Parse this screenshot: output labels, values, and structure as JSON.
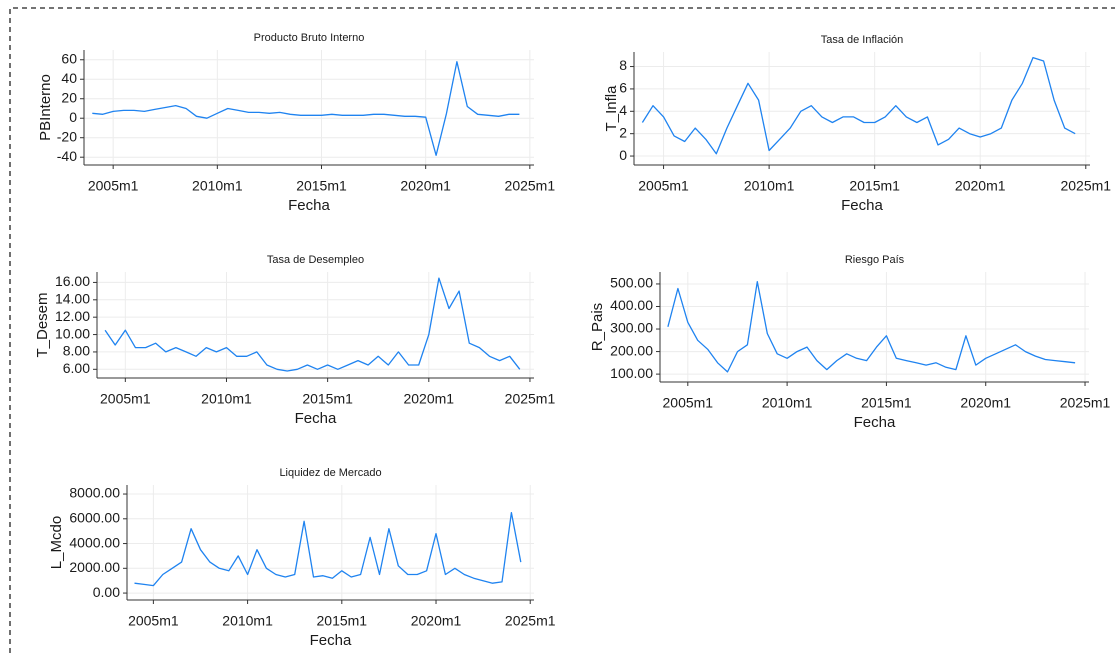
{
  "chart_data": [
    {
      "type": "line",
      "title": "Producto Bruto Interno",
      "x_label": "Fecha",
      "y_label": "PBInterno",
      "grid": true,
      "xlim": [
        2003.6,
        2025.2
      ],
      "xticks": [
        {
          "value": 2005,
          "label": "2005m1"
        },
        {
          "value": 2010,
          "label": "2010m1"
        },
        {
          "value": 2015,
          "label": "2015m1"
        },
        {
          "value": 2020,
          "label": "2020m1"
        },
        {
          "value": 2025,
          "label": "2025m1"
        }
      ],
      "ylim": [
        -48,
        70
      ],
      "yticks": [
        -40,
        -20,
        0,
        20,
        40,
        60
      ],
      "x": [
        2004,
        2004.5,
        2005,
        2005.5,
        2006,
        2006.5,
        2007,
        2007.5,
        2008,
        2008.5,
        2009,
        2009.5,
        2010,
        2010.5,
        2011,
        2011.5,
        2012,
        2012.5,
        2013,
        2013.5,
        2014,
        2014.5,
        2015,
        2015.5,
        2016,
        2016.5,
        2017,
        2017.5,
        2018,
        2018.5,
        2019,
        2019.5,
        2020,
        2020.5,
        2021,
        2021.5,
        2022,
        2022.5,
        2023,
        2023.5,
        2024,
        2024.5
      ],
      "series": [
        {
          "name": "PBInterno",
          "color": "#1f83f0",
          "values": [
            5,
            4,
            7,
            8,
            8,
            7,
            9,
            11,
            13,
            10,
            2,
            0,
            5,
            10,
            8,
            6,
            6,
            5,
            6,
            4,
            3,
            3,
            3,
            4,
            3,
            3,
            3,
            4,
            4,
            3,
            2,
            2,
            1,
            -38,
            5,
            58,
            12,
            4,
            3,
            2,
            4,
            4
          ]
        }
      ]
    },
    {
      "type": "line",
      "title": "Tasa de Inflación",
      "x_label": "Fecha",
      "y_label": "T_Infla",
      "grid": true,
      "xlim": [
        2003.6,
        2025.2
      ],
      "xticks": [
        {
          "value": 2005,
          "label": "2005m1"
        },
        {
          "value": 2010,
          "label": "2010m1"
        },
        {
          "value": 2015,
          "label": "2015m1"
        },
        {
          "value": 2020,
          "label": "2020m1"
        },
        {
          "value": 2025,
          "label": "2025m1"
        }
      ],
      "ylim": [
        -0.8,
        9.3
      ],
      "yticks": [
        0,
        2,
        4,
        6,
        8
      ],
      "x": [
        2004,
        2004.5,
        2005,
        2005.5,
        2006,
        2006.5,
        2007,
        2007.5,
        2008,
        2008.5,
        2009,
        2009.5,
        2010,
        2010.5,
        2011,
        2011.5,
        2012,
        2012.5,
        2013,
        2013.5,
        2014,
        2014.5,
        2015,
        2015.5,
        2016,
        2016.5,
        2017,
        2017.5,
        2018,
        2018.5,
        2019,
        2019.5,
        2020,
        2020.5,
        2021,
        2021.5,
        2022,
        2022.5,
        2023,
        2023.5,
        2024,
        2024.5
      ],
      "series": [
        {
          "name": "T_Infla",
          "color": "#1f83f0",
          "values": [
            3,
            4.5,
            3.5,
            1.8,
            1.3,
            2.5,
            1.5,
            0.2,
            2.5,
            4.5,
            6.5,
            5,
            0.5,
            1.5,
            2.5,
            4,
            4.5,
            3.5,
            3,
            3.5,
            3.5,
            3,
            3,
            3.5,
            4.5,
            3.5,
            3,
            3.5,
            1,
            1.5,
            2.5,
            2,
            1.7,
            2,
            2.5,
            5,
            6.5,
            8.8,
            8.5,
            5,
            2.5,
            2
          ]
        }
      ]
    },
    {
      "type": "line",
      "title": "Tasa de Desempleo",
      "x_label": "Fecha",
      "y_label": "T_Desem",
      "grid": true,
      "xlim": [
        2003.6,
        2025.2
      ],
      "xticks": [
        {
          "value": 2005,
          "label": "2005m1"
        },
        {
          "value": 2010,
          "label": "2010m1"
        },
        {
          "value": 2015,
          "label": "2015m1"
        },
        {
          "value": 2020,
          "label": "2020m1"
        },
        {
          "value": 2025,
          "label": "2025m1"
        }
      ],
      "ylim": [
        5,
        17.2
      ],
      "yticks": [
        {
          "value": 6,
          "label": "6.00"
        },
        {
          "value": 8,
          "label": "8.00"
        },
        {
          "value": 10,
          "label": "10.00"
        },
        {
          "value": 12,
          "label": "12.00"
        },
        {
          "value": 14,
          "label": "14.00"
        },
        {
          "value": 16,
          "label": "16.00"
        }
      ],
      "x": [
        2004,
        2004.5,
        2005,
        2005.5,
        2006,
        2006.5,
        2007,
        2007.5,
        2008,
        2008.5,
        2009,
        2009.5,
        2010,
        2010.5,
        2011,
        2011.5,
        2012,
        2012.5,
        2013,
        2013.5,
        2014,
        2014.5,
        2015,
        2015.5,
        2016,
        2016.5,
        2017,
        2017.5,
        2018,
        2018.5,
        2019,
        2019.5,
        2020,
        2020.5,
        2021,
        2021.5,
        2022,
        2022.5,
        2023,
        2023.5,
        2024,
        2024.5
      ],
      "series": [
        {
          "name": "T_Desem",
          "color": "#1f83f0",
          "values": [
            10.5,
            8.8,
            10.5,
            8.5,
            8.5,
            9,
            8,
            8.5,
            8,
            7.5,
            8.5,
            8,
            8.5,
            7.5,
            7.5,
            8,
            6.5,
            6,
            5.8,
            6,
            6.5,
            6,
            6.5,
            6,
            6.5,
            7,
            6.5,
            7.5,
            6.5,
            8,
            6.5,
            6.5,
            10,
            16.5,
            13,
            15,
            9,
            8.5,
            7.5,
            7,
            7.5,
            6
          ]
        }
      ]
    },
    {
      "type": "line",
      "title": "Riesgo País",
      "x_label": "Fecha",
      "y_label": "R_Pais",
      "grid": true,
      "xlim": [
        2003.6,
        2025.2
      ],
      "xticks": [
        {
          "value": 2005,
          "label": "2005m1"
        },
        {
          "value": 2010,
          "label": "2010m1"
        },
        {
          "value": 2015,
          "label": "2015m1"
        },
        {
          "value": 2020,
          "label": "2020m1"
        },
        {
          "value": 2025,
          "label": "2025m1"
        }
      ],
      "ylim": [
        65,
        553
      ],
      "yticks": [
        {
          "value": 100,
          "label": "100.00"
        },
        {
          "value": 200,
          "label": "200.00"
        },
        {
          "value": 300,
          "label": "300.00"
        },
        {
          "value": 400,
          "label": "400.00"
        },
        {
          "value": 500,
          "label": "500.00"
        }
      ],
      "x": [
        2004,
        2004.5,
        2005,
        2005.5,
        2006,
        2006.5,
        2007,
        2007.5,
        2008,
        2008.5,
        2009,
        2009.5,
        2010,
        2010.5,
        2011,
        2011.5,
        2012,
        2012.5,
        2013,
        2013.5,
        2014,
        2014.5,
        2015,
        2015.5,
        2016,
        2016.5,
        2017,
        2017.5,
        2018,
        2018.5,
        2019,
        2019.5,
        2020,
        2020.5,
        2021,
        2021.5,
        2022,
        2022.5,
        2023,
        2023.5,
        2024,
        2024.5
      ],
      "series": [
        {
          "name": "R_Pais",
          "color": "#1f83f0",
          "values": [
            310,
            480,
            330,
            250,
            210,
            150,
            110,
            200,
            230,
            510,
            280,
            190,
            170,
            200,
            220,
            160,
            120,
            160,
            190,
            170,
            160,
            220,
            270,
            170,
            160,
            150,
            140,
            150,
            130,
            120,
            270,
            140,
            170,
            190,
            210,
            230,
            200,
            180,
            165,
            160,
            155,
            150
          ]
        }
      ]
    },
    {
      "type": "line",
      "title": "Liquidez de Mercado",
      "x_label": "Fecha",
      "y_label": "L_Mcdo",
      "grid": true,
      "xlim": [
        2003.6,
        2025.2
      ],
      "xticks": [
        {
          "value": 2005,
          "label": "2005m1"
        },
        {
          "value": 2010,
          "label": "2010m1"
        },
        {
          "value": 2015,
          "label": "2015m1"
        },
        {
          "value": 2020,
          "label": "2020m1"
        },
        {
          "value": 2025,
          "label": "2025m1"
        }
      ],
      "ylim": [
        -560,
        8730
      ],
      "yticks": [
        {
          "value": 0,
          "label": "0.00"
        },
        {
          "value": 2000,
          "label": "2000.00"
        },
        {
          "value": 4000,
          "label": "4000.00"
        },
        {
          "value": 6000,
          "label": "6000.00"
        },
        {
          "value": 8000,
          "label": "8000.00"
        }
      ],
      "x": [
        2004,
        2004.5,
        2005,
        2005.5,
        2006,
        2006.5,
        2007,
        2007.5,
        2008,
        2008.5,
        2009,
        2009.5,
        2010,
        2010.5,
        2011,
        2011.5,
        2012,
        2012.5,
        2013,
        2013.5,
        2014,
        2014.5,
        2015,
        2015.5,
        2016,
        2016.5,
        2017,
        2017.5,
        2018,
        2018.5,
        2019,
        2019.5,
        2020,
        2020.5,
        2021,
        2021.5,
        2022,
        2022.5,
        2023,
        2023.5,
        2024,
        2024.5
      ],
      "series": [
        {
          "name": "L_Mcdo",
          "color": "#1f83f0",
          "values": [
            800,
            700,
            600,
            1500,
            2000,
            2500,
            5200,
            3500,
            2500,
            2000,
            1800,
            3000,
            1500,
            3500,
            2000,
            1500,
            1300,
            1500,
            5800,
            1300,
            1400,
            1200,
            1800,
            1300,
            1500,
            4500,
            1500,
            5200,
            2200,
            1500,
            1500,
            1800,
            4800,
            1500,
            2000,
            1500,
            1200,
            1000,
            800,
            900,
            6500,
            2500
          ]
        }
      ]
    }
  ]
}
